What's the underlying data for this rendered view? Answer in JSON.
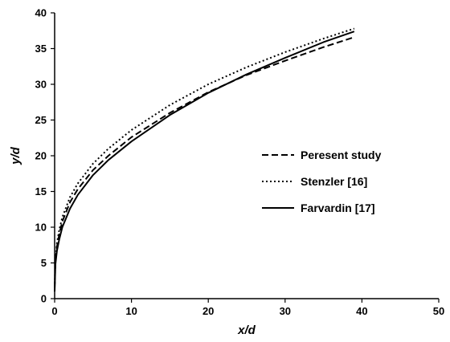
{
  "chart_data": {
    "type": "line",
    "xlabel": "x/d",
    "ylabel": "y/d",
    "xlim": [
      0,
      50
    ],
    "ylim": [
      0,
      40
    ],
    "x_ticks": [
      0,
      10,
      20,
      30,
      40,
      50
    ],
    "y_ticks": [
      0,
      5,
      10,
      15,
      20,
      25,
      30,
      35,
      40
    ],
    "grid": false,
    "legend_position": "right-middle",
    "series": [
      {
        "name": "Peresent study",
        "style": "dashed",
        "color": "#000000",
        "x": [
          0,
          0.1,
          0.3,
          0.6,
          1,
          2,
          3,
          5,
          7,
          10,
          15,
          20,
          25,
          30,
          35,
          39
        ],
        "y": [
          1.5,
          5.2,
          7.3,
          9.0,
          10.8,
          13.5,
          15.3,
          18.0,
          20.0,
          22.6,
          26.0,
          28.9,
          31.3,
          33.3,
          35.2,
          36.6
        ]
      },
      {
        "name": "Stenzler [16]",
        "style": "dotted",
        "color": "#000000",
        "x": [
          0,
          0.1,
          0.3,
          0.6,
          1,
          2,
          3,
          5,
          7,
          10,
          15,
          20,
          25,
          30,
          35,
          39
        ],
        "y": [
          1.5,
          5.6,
          7.8,
          9.6,
          11.4,
          14.2,
          16.1,
          18.9,
          21.0,
          23.6,
          27.1,
          30.0,
          32.4,
          34.5,
          36.4,
          37.8
        ]
      },
      {
        "name": "Farvardin [17]",
        "style": "solid",
        "color": "#000000",
        "x": [
          0,
          0.1,
          0.3,
          0.6,
          1,
          2,
          3,
          5,
          7,
          10,
          15,
          20,
          25,
          30,
          35,
          39
        ],
        "y": [
          1.0,
          4.8,
          6.7,
          8.3,
          10.0,
          12.6,
          14.5,
          17.3,
          19.4,
          22.0,
          25.7,
          28.8,
          31.4,
          33.7,
          35.9,
          37.4
        ]
      }
    ]
  }
}
